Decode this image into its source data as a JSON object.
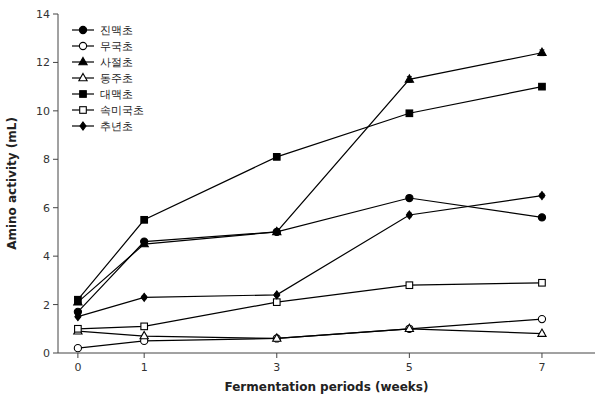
{
  "chart_data": {
    "type": "line",
    "xlabel": "Fermentation periods (weeks)",
    "ylabel": "Amino activity  (mL)",
    "x": [
      0,
      1,
      3,
      5,
      7
    ],
    "xlim": [
      -0.3,
      7.8
    ],
    "ylim": [
      0,
      14
    ],
    "xticks": [
      0,
      1,
      3,
      5,
      7
    ],
    "yticks": [
      0,
      2,
      4,
      6,
      8,
      10,
      12,
      14
    ],
    "legend": "upper left",
    "series": [
      {
        "name": "진맥초",
        "color": "#000000",
        "marker": "circle",
        "values": [
          1.7,
          4.6,
          5.0,
          6.4,
          5.6
        ],
        "errors": [
          0.05,
          0.08,
          0.1,
          0.1,
          0.08
        ]
      },
      {
        "name": "무국초",
        "color": "#000000",
        "marker": "circle-open",
        "values": [
          0.2,
          0.5,
          0.6,
          1.0,
          1.4
        ],
        "errors": [
          0.03,
          0.04,
          0.04,
          0.05,
          0.05
        ]
      },
      {
        "name": "사절초",
        "color": "#000000",
        "marker": "triangle",
        "values": [
          2.1,
          4.5,
          5.0,
          11.3,
          12.4
        ],
        "errors": [
          0.05,
          0.08,
          0.1,
          0.12,
          0.12
        ]
      },
      {
        "name": "동주초",
        "color": "#000000",
        "marker": "triangle-open",
        "values": [
          0.9,
          0.7,
          0.6,
          1.0,
          0.8
        ],
        "errors": [
          0.03,
          0.03,
          0.03,
          0.04,
          0.04
        ]
      },
      {
        "name": "대맥초",
        "color": "#000000",
        "marker": "square",
        "values": [
          2.2,
          5.5,
          8.1,
          9.9,
          11.0
        ],
        "errors": [
          0.05,
          0.08,
          0.1,
          0.1,
          0.1
        ]
      },
      {
        "name": "속미국초",
        "color": "#000000",
        "marker": "square-open",
        "values": [
          1.0,
          1.1,
          2.1,
          2.8,
          2.9
        ],
        "errors": [
          0.03,
          0.04,
          0.05,
          0.05,
          0.05
        ]
      },
      {
        "name": "추년초",
        "color": "#000000",
        "marker": "diamond",
        "values": [
          1.5,
          2.3,
          2.4,
          5.7,
          6.5
        ],
        "errors": [
          0.04,
          0.06,
          0.06,
          0.08,
          0.08
        ]
      }
    ]
  }
}
